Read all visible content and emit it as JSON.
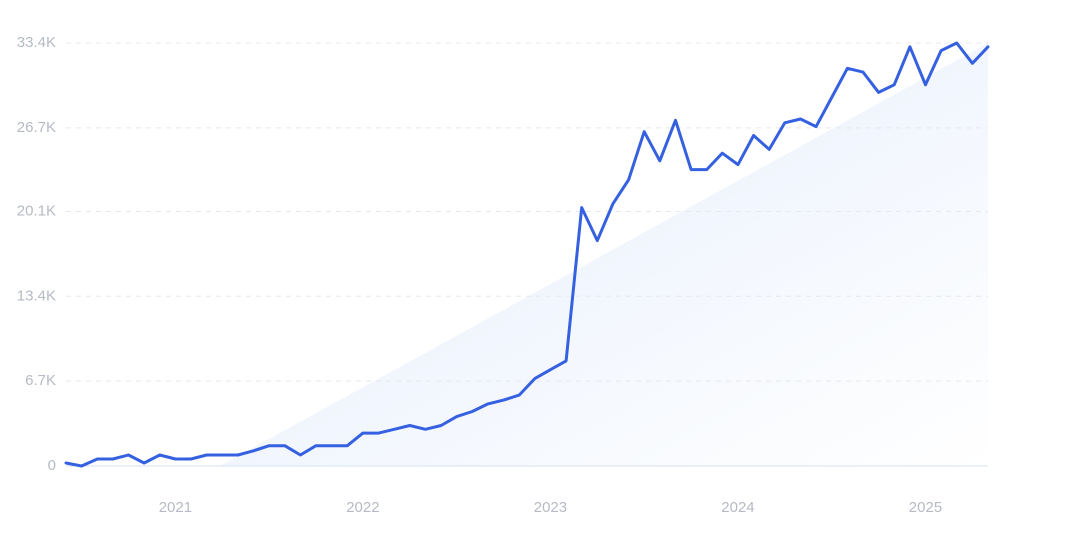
{
  "chart_data": {
    "type": "line",
    "categories": [
      null,
      null,
      null,
      null,
      null,
      null,
      null,
      "2021",
      null,
      null,
      null,
      null,
      null,
      null,
      null,
      null,
      null,
      null,
      null,
      "2022",
      null,
      null,
      null,
      null,
      null,
      null,
      null,
      null,
      null,
      null,
      null,
      "2023",
      null,
      null,
      null,
      null,
      null,
      null,
      null,
      null,
      null,
      null,
      null,
      "2024",
      null,
      null,
      null,
      null,
      null,
      null,
      null,
      null,
      null,
      null,
      null,
      "2025",
      null,
      null,
      null,
      null
    ],
    "series": [
      {
        "color": "#3561e0",
        "values": [
          240,
          0,
          550,
          550,
          870,
          240,
          870,
          550,
          550,
          870,
          870,
          870,
          1200,
          1600,
          1600,
          870,
          1600,
          1600,
          1600,
          2600,
          2600,
          2900,
          3200,
          2900,
          3200,
          3900,
          4300,
          4900,
          5200,
          5600,
          6900,
          7600,
          8300,
          20400,
          17800,
          20700,
          22600,
          26400,
          24100,
          27300,
          23400,
          23400,
          24700,
          23800,
          26100,
          25000,
          27100,
          27400,
          26800,
          29100,
          31400,
          31100,
          29500,
          30100,
          33100,
          30100,
          32800,
          33400,
          31800,
          33100
        ]
      }
    ],
    "ylim": [
      0,
      33400
    ],
    "yticks": [
      0,
      {
        "value": 6700,
        "label": "6.7K"
      },
      {
        "value": 13400,
        "label": "13.4K"
      },
      {
        "value": 20100,
        "label": "20.1K"
      },
      {
        "value": 26700,
        "label": "26.7K"
      },
      {
        "value": 33400,
        "label": "33.4K"
      }
    ],
    "grid": true
  }
}
